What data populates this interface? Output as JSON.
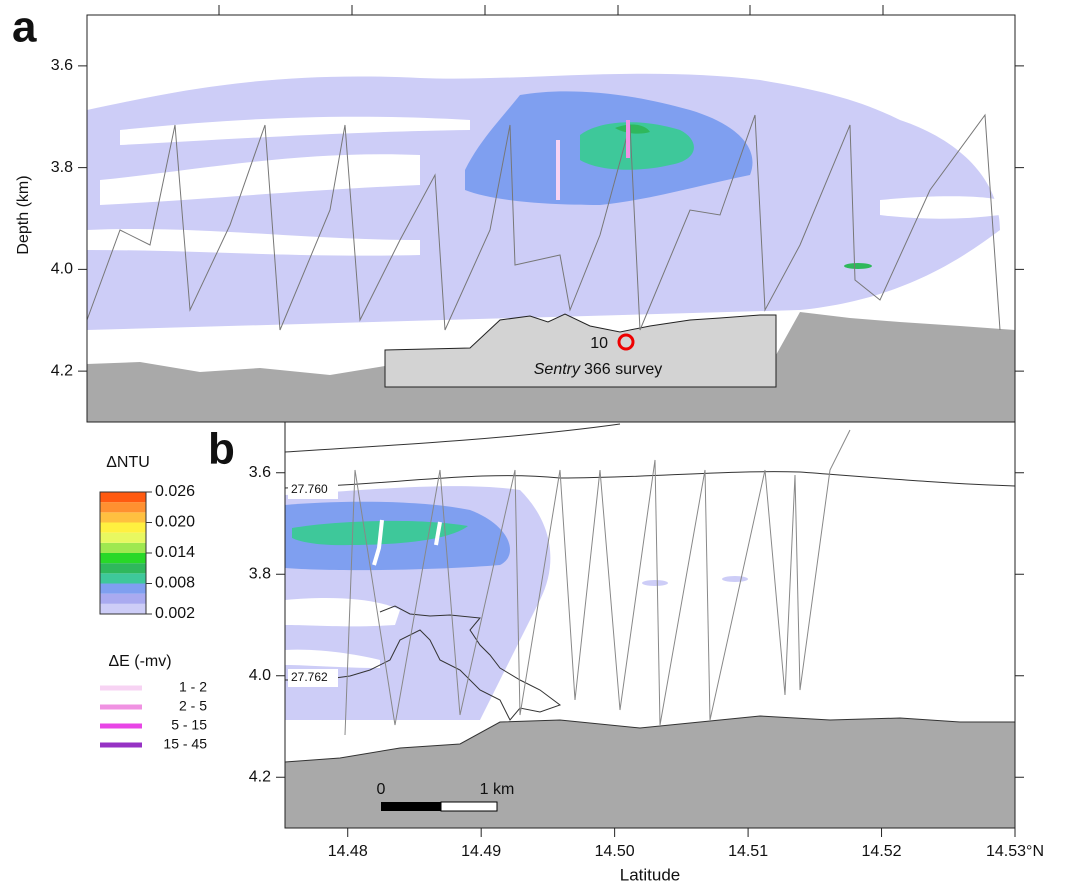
{
  "chart_data": [
    {
      "type": "contour",
      "panel_label": "a",
      "y_label": "Depth (km)",
      "ylim": [
        3.5,
        4.3
      ],
      "y_inverted": true,
      "yticks": [
        3.6,
        3.8,
        {
          "value": 4,
          "label": "4.0"
        },
        4.2
      ],
      "station_label": "10",
      "survey_name": "Sentry",
      "survey_text": "366 survey"
    },
    {
      "type": "contour",
      "panel_label": "b",
      "x_label": "Latitude",
      "xlim": [
        14.4753,
        14.53
      ],
      "ylim": [
        3.5,
        4.3
      ],
      "y_inverted": true,
      "xticks": [
        14.48,
        14.49,
        {
          "value": 14.5,
          "label": "14.50"
        },
        14.51,
        14.52,
        {
          "value": 14.53,
          "label": "14.53°N"
        }
      ],
      "yticks": [
        3.6,
        3.8,
        {
          "value": 4,
          "label": "4.0"
        },
        4.2
      ],
      "isopycnal_labels": [
        "27.760",
        "27.762"
      ],
      "scale_bar_labels": [
        "0",
        "1 km"
      ]
    }
  ],
  "colorbar": {
    "title": "ΔNTU",
    "levels": [
      0.002,
      0.004,
      0.006,
      0.008,
      0.01,
      0.012,
      0.014,
      0.016,
      0.018,
      0.02,
      0.022,
      0.024,
      0.026
    ],
    "colors": [
      "#cdcdf7",
      "#a9aaf0",
      "#7f9ff0",
      "#3ec89a",
      "#2fb85c",
      "#28d828",
      "#9fe850",
      "#e8f860",
      "#fff040",
      "#ffc040",
      "#ff9030",
      "#ff5a10"
    ],
    "ticks": [
      0.002,
      0.008,
      0.014,
      {
        "value": 0.02,
        "label": "0.020"
      },
      0.026
    ]
  },
  "de_legend": {
    "title": "ΔE (-mv)",
    "entries": [
      {
        "label": "1 - 2",
        "color": "#f7d3f3"
      },
      {
        "label": "2 - 5",
        "color": "#f092e2"
      },
      {
        "label": "5 - 15",
        "color": "#e846e6"
      },
      {
        "label": "15 - 45",
        "color": "#9632c4"
      }
    ]
  }
}
